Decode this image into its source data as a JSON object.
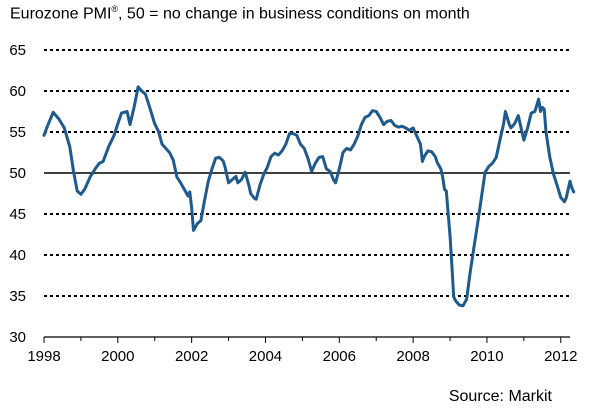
{
  "title": {
    "prefix": "Eurozone PMI",
    "sup": "®",
    "rest": ", 50 = no change in business conditions on month"
  },
  "source": "Source: Markit",
  "colors": {
    "series": "#1f5a8c",
    "grid": "#000000",
    "reference": "#000000"
  },
  "chart_data": {
    "type": "line",
    "xlim": [
      1998,
      2012.25
    ],
    "ylim": [
      30,
      65
    ],
    "x_ticks": [
      1998,
      2000,
      2002,
      2004,
      2006,
      2008,
      2010,
      2012
    ],
    "x_tick_labels": [
      "1998",
      "2000",
      "2002",
      "2004",
      "2006",
      "2008",
      "2010",
      "2012"
    ],
    "y_ticks": [
      30,
      35,
      40,
      45,
      50,
      55,
      60,
      65
    ],
    "y_tick_labels": [
      "30",
      "35",
      "40",
      "45",
      "50",
      "55",
      "60",
      "65"
    ],
    "grid": "horizontal dotted",
    "reference_line": 50,
    "legend": "none",
    "series": [
      {
        "points": [
          [
            1998.0,
            54.6
          ],
          [
            1998.1,
            55.8
          ],
          [
            1998.25,
            57.4
          ],
          [
            1998.4,
            56.6
          ],
          [
            1998.55,
            55.5
          ],
          [
            1998.7,
            53.2
          ],
          [
            1998.8,
            50.2
          ],
          [
            1998.9,
            47.8
          ],
          [
            1999.0,
            47.4
          ],
          [
            1999.1,
            48.0
          ],
          [
            1999.25,
            49.5
          ],
          [
            1999.4,
            50.6
          ],
          [
            1999.5,
            51.2
          ],
          [
            1999.6,
            51.4
          ],
          [
            1999.75,
            53.2
          ],
          [
            1999.9,
            54.6
          ],
          [
            2000.0,
            56.0
          ],
          [
            2000.1,
            57.3
          ],
          [
            2000.25,
            57.5
          ],
          [
            2000.33,
            55.9
          ],
          [
            2000.45,
            58.2
          ],
          [
            2000.55,
            60.5
          ],
          [
            2000.65,
            60.0
          ],
          [
            2000.75,
            59.6
          ],
          [
            2000.85,
            58.2
          ],
          [
            2001.0,
            56.0
          ],
          [
            2001.1,
            55.1
          ],
          [
            2001.2,
            53.5
          ],
          [
            2001.3,
            53.0
          ],
          [
            2001.4,
            52.5
          ],
          [
            2001.5,
            51.6
          ],
          [
            2001.6,
            49.5
          ],
          [
            2001.7,
            48.8
          ],
          [
            2001.8,
            48.0
          ],
          [
            2001.9,
            47.2
          ],
          [
            2001.95,
            47.7
          ],
          [
            2002.0,
            45.8
          ],
          [
            2002.05,
            43.0
          ],
          [
            2002.15,
            43.8
          ],
          [
            2002.25,
            44.2
          ],
          [
            2002.35,
            46.7
          ],
          [
            2002.45,
            49.0
          ],
          [
            2002.55,
            50.5
          ],
          [
            2002.65,
            51.8
          ],
          [
            2002.75,
            51.9
          ],
          [
            2002.85,
            51.5
          ],
          [
            2002.9,
            50.8
          ],
          [
            2003.0,
            48.8
          ],
          [
            2003.1,
            49.2
          ],
          [
            2003.2,
            49.6
          ],
          [
            2003.25,
            48.8
          ],
          [
            2003.35,
            49.2
          ],
          [
            2003.45,
            50.1
          ],
          [
            2003.55,
            48.5
          ],
          [
            2003.6,
            47.5
          ],
          [
            2003.7,
            46.9
          ],
          [
            2003.75,
            46.8
          ],
          [
            2003.85,
            48.5
          ],
          [
            2003.95,
            49.8
          ],
          [
            2004.05,
            50.7
          ],
          [
            2004.15,
            52.0
          ],
          [
            2004.25,
            52.4
          ],
          [
            2004.35,
            52.2
          ],
          [
            2004.45,
            52.7
          ],
          [
            2004.55,
            53.5
          ],
          [
            2004.65,
            54.8
          ],
          [
            2004.75,
            54.8
          ],
          [
            2004.85,
            54.6
          ],
          [
            2004.95,
            53.5
          ],
          [
            2005.05,
            53.0
          ],
          [
            2005.15,
            51.8
          ],
          [
            2005.25,
            50.2
          ],
          [
            2005.35,
            51.2
          ],
          [
            2005.45,
            51.9
          ],
          [
            2005.55,
            52.0
          ],
          [
            2005.65,
            50.5
          ],
          [
            2005.75,
            50.2
          ],
          [
            2005.85,
            49.1
          ],
          [
            2005.9,
            48.8
          ],
          [
            2006.0,
            50.5
          ],
          [
            2006.1,
            52.5
          ],
          [
            2006.2,
            53.0
          ],
          [
            2006.3,
            52.8
          ],
          [
            2006.4,
            53.5
          ],
          [
            2006.5,
            54.5
          ],
          [
            2006.6,
            55.9
          ],
          [
            2006.7,
            56.8
          ],
          [
            2006.8,
            57.0
          ],
          [
            2006.9,
            57.6
          ],
          [
            2007.0,
            57.5
          ],
          [
            2007.1,
            56.8
          ],
          [
            2007.2,
            55.9
          ],
          [
            2007.3,
            56.3
          ],
          [
            2007.4,
            56.4
          ],
          [
            2007.5,
            55.8
          ],
          [
            2007.6,
            55.6
          ],
          [
            2007.7,
            55.7
          ],
          [
            2007.8,
            55.5
          ],
          [
            2007.9,
            55.2
          ],
          [
            2008.0,
            55.5
          ],
          [
            2008.1,
            54.5
          ],
          [
            2008.2,
            53.5
          ],
          [
            2008.25,
            51.4
          ],
          [
            2008.3,
            52.0
          ],
          [
            2008.4,
            52.7
          ],
          [
            2008.5,
            52.6
          ],
          [
            2008.6,
            52.0
          ],
          [
            2008.65,
            51.3
          ],
          [
            2008.75,
            50.5
          ],
          [
            2008.8,
            49.5
          ],
          [
            2008.85,
            48.0
          ],
          [
            2008.9,
            47.8
          ],
          [
            2008.95,
            45.0
          ],
          [
            2009.0,
            42.4
          ],
          [
            2009.05,
            38.7
          ],
          [
            2009.1,
            34.9
          ],
          [
            2009.15,
            34.4
          ],
          [
            2009.25,
            33.9
          ],
          [
            2009.35,
            33.8
          ],
          [
            2009.45,
            34.6
          ],
          [
            2009.55,
            38.0
          ],
          [
            2009.65,
            41.0
          ],
          [
            2009.75,
            43.9
          ],
          [
            2009.85,
            47.0
          ],
          [
            2009.95,
            50.1
          ],
          [
            2010.05,
            50.8
          ],
          [
            2010.15,
            51.2
          ],
          [
            2010.25,
            51.9
          ],
          [
            2010.35,
            54.0
          ],
          [
            2010.45,
            56.0
          ],
          [
            2010.5,
            57.5
          ],
          [
            2010.6,
            56.0
          ],
          [
            2010.65,
            55.5
          ],
          [
            2010.75,
            56.0
          ],
          [
            2010.85,
            57.0
          ],
          [
            2010.95,
            55.0
          ],
          [
            2011.0,
            54.0
          ],
          [
            2011.1,
            55.5
          ],
          [
            2011.2,
            57.3
          ],
          [
            2011.3,
            57.5
          ],
          [
            2011.4,
            59.0
          ],
          [
            2011.45,
            57.5
          ],
          [
            2011.5,
            58.0
          ],
          [
            2011.55,
            57.8
          ],
          [
            2011.6,
            55.0
          ],
          [
            2011.7,
            52.0
          ],
          [
            2011.8,
            49.9
          ],
          [
            2011.9,
            48.5
          ],
          [
            2012.0,
            47.0
          ],
          [
            2012.1,
            46.5
          ],
          [
            2012.15,
            47.0
          ],
          [
            2012.25,
            49.0
          ],
          [
            2012.3,
            48.2
          ],
          [
            2012.35,
            47.7
          ]
        ]
      }
    ]
  }
}
